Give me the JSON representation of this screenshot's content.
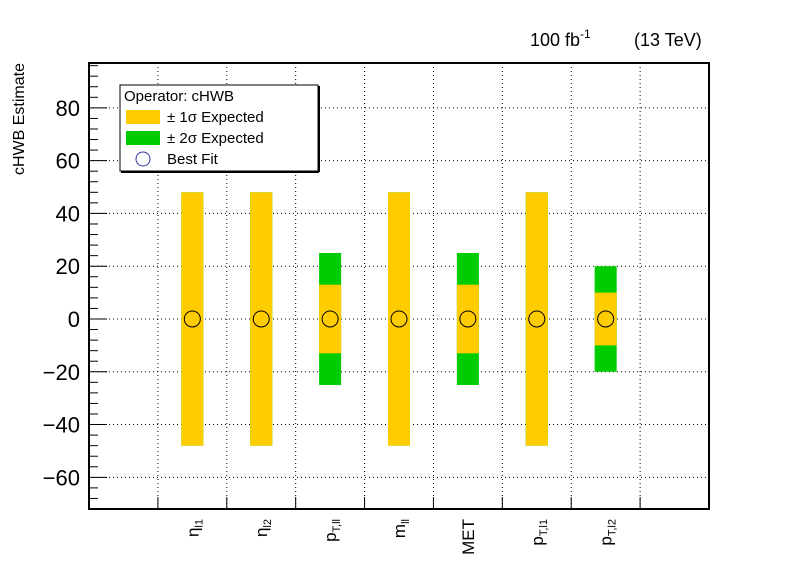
{
  "header": {
    "lumi_main": "100 fb",
    "lumi_sup": "-1",
    "energy": "(13 TeV)"
  },
  "legend": {
    "title": "Operator: cHWB",
    "entries": [
      {
        "label": "± 1σ Expected",
        "color": "#ffcc00"
      },
      {
        "label": "± 2σ Expected",
        "color": "#00cc00"
      },
      {
        "label": "Best Fit",
        "color": "#3333aa"
      }
    ]
  },
  "chart_data": {
    "type": "bar",
    "ylabel": "cHWB Estimate",
    "ylim": [
      -72,
      97
    ],
    "yticks": [
      -60,
      -40,
      -20,
      0,
      20,
      40,
      60,
      80
    ],
    "grid": true,
    "legend_position": "top-left",
    "colors": {
      "one_sigma": "#ffcc00",
      "two_sigma": "#00cc00",
      "best_fit": "#3333aa"
    },
    "categories": [
      {
        "base": "η",
        "sub": "l1"
      },
      {
        "base": "η",
        "sub": "l2"
      },
      {
        "base": "p",
        "sub": "T,ll"
      },
      {
        "base": "m",
        "sub": "ll"
      },
      {
        "base": "MET",
        "sub": ""
      },
      {
        "base": "p",
        "sub": "T,l1"
      },
      {
        "base": "p",
        "sub": "T,l2"
      }
    ],
    "best_fit": [
      0,
      0,
      0,
      0,
      0,
      0,
      0
    ],
    "one_sigma": [
      [
        -48,
        48
      ],
      [
        -48,
        48
      ],
      [
        -13,
        13
      ],
      [
        -48,
        48
      ],
      [
        -13,
        13
      ],
      [
        -48,
        48
      ],
      [
        -10,
        10
      ]
    ],
    "two_sigma": [
      [
        -48,
        48
      ],
      [
        -48,
        48
      ],
      [
        -25,
        25
      ],
      [
        -48,
        48
      ],
      [
        -25,
        25
      ],
      [
        -48,
        48
      ],
      [
        -20,
        20
      ]
    ]
  }
}
